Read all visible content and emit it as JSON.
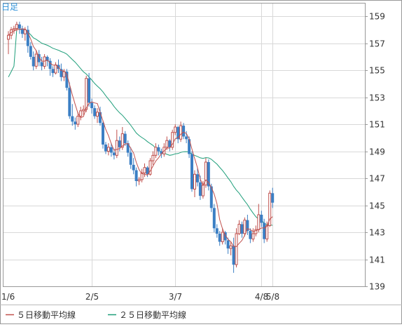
{
  "chart_data": {
    "type": "candlestick",
    "period_label": "日足",
    "ylim": [
      139,
      160
    ],
    "y_ticks": [
      159,
      157,
      155,
      153,
      151,
      149,
      147,
      145,
      143,
      141,
      139
    ],
    "x_ticks": [
      "1/6",
      "2/5",
      "3/7",
      "4/8",
      "5/8"
    ],
    "legend": [
      {
        "label": "５日移動平均線",
        "color": "#c0504d"
      },
      {
        "label": "２５日移動平均線",
        "color": "#1e9e7a"
      }
    ],
    "colors": {
      "up": "#c0504d",
      "down": "#3b7fc4",
      "grid": "#d8d8d8",
      "frame": "#999999"
    },
    "candles": [
      [
        157.3,
        157.9,
        156.2,
        157.6
      ],
      [
        157.6,
        158.2,
        157.3,
        158.0
      ],
      [
        158.0,
        158.3,
        157.7,
        158.1
      ],
      [
        158.1,
        158.6,
        157.9,
        158.4
      ],
      [
        158.4,
        158.6,
        157.7,
        158.1
      ],
      [
        158.1,
        158.3,
        157.4,
        157.7
      ],
      [
        157.7,
        158.2,
        157.2,
        158.0
      ],
      [
        158.0,
        158.3,
        156.3,
        156.8
      ],
      [
        156.8,
        157.1,
        155.8,
        156.0
      ],
      [
        156.0,
        156.4,
        155.0,
        155.3
      ],
      [
        155.3,
        156.5,
        155.1,
        156.2
      ],
      [
        156.2,
        156.5,
        155.3,
        155.6
      ],
      [
        155.6,
        156.0,
        155.0,
        155.3
      ],
      [
        155.3,
        156.2,
        155.1,
        156.0
      ],
      [
        156.0,
        156.1,
        155.3,
        155.7
      ],
      [
        155.7,
        155.9,
        154.6,
        155.1
      ],
      [
        155.1,
        155.3,
        154.5,
        154.8
      ],
      [
        154.8,
        155.6,
        154.7,
        155.4
      ],
      [
        155.4,
        155.8,
        154.8,
        155.1
      ],
      [
        155.1,
        155.5,
        154.2,
        154.5
      ],
      [
        154.5,
        155.1,
        154.2,
        154.9
      ],
      [
        154.9,
        155.1,
        153.5,
        153.7
      ],
      [
        153.7,
        154.1,
        151.4,
        151.6
      ],
      [
        151.6,
        152.5,
        150.9,
        151.2
      ],
      [
        151.2,
        151.5,
        150.6,
        151.0
      ],
      [
        151.0,
        151.9,
        150.8,
        151.6
      ],
      [
        151.6,
        152.3,
        151.3,
        152.0
      ],
      [
        152.0,
        152.4,
        151.7,
        152.1
      ],
      [
        152.1,
        154.6,
        151.9,
        154.4
      ],
      [
        154.4,
        154.8,
        152.3,
        152.6
      ],
      [
        152.6,
        152.9,
        151.8,
        152.2
      ],
      [
        152.2,
        152.4,
        151.4,
        151.6
      ],
      [
        151.6,
        152.2,
        151.1,
        151.9
      ],
      [
        151.9,
        152.3,
        150.9,
        151.1
      ],
      [
        151.1,
        151.3,
        149.2,
        149.5
      ],
      [
        149.5,
        149.7,
        148.8,
        149.0
      ],
      [
        149.0,
        149.6,
        148.7,
        149.3
      ],
      [
        149.3,
        149.6,
        148.6,
        148.9
      ],
      [
        148.9,
        149.2,
        148.4,
        148.7
      ],
      [
        148.7,
        150.6,
        148.5,
        149.8
      ],
      [
        149.8,
        150.1,
        149.0,
        149.3
      ],
      [
        149.3,
        150.8,
        149.1,
        150.3
      ],
      [
        150.3,
        150.5,
        149.4,
        149.6
      ],
      [
        149.6,
        149.8,
        148.6,
        148.9
      ],
      [
        148.9,
        149.3,
        147.7,
        148.0
      ],
      [
        148.0,
        148.5,
        147.3,
        147.6
      ],
      [
        147.6,
        147.8,
        146.4,
        146.8
      ],
      [
        146.8,
        147.1,
        146.5,
        146.9
      ],
      [
        146.9,
        147.7,
        146.7,
        147.4
      ],
      [
        147.4,
        148.1,
        147.1,
        147.8
      ],
      [
        147.8,
        147.9,
        147.1,
        147.3
      ],
      [
        147.3,
        148.5,
        147.2,
        148.3
      ],
      [
        148.3,
        149.0,
        148.0,
        148.7
      ],
      [
        148.7,
        149.6,
        148.5,
        149.3
      ],
      [
        149.3,
        149.5,
        148.7,
        149.0
      ],
      [
        149.0,
        149.2,
        148.5,
        148.8
      ],
      [
        148.8,
        149.6,
        148.6,
        149.3
      ],
      [
        149.3,
        150.1,
        149.1,
        149.8
      ],
      [
        149.8,
        149.9,
        149.0,
        149.3
      ],
      [
        149.3,
        150.6,
        149.1,
        150.4
      ],
      [
        150.4,
        151.0,
        150.2,
        150.8
      ],
      [
        150.8,
        150.9,
        149.6,
        149.9
      ],
      [
        149.9,
        151.2,
        149.7,
        150.9
      ],
      [
        150.9,
        151.1,
        149.9,
        150.1
      ],
      [
        150.1,
        150.5,
        149.6,
        149.9
      ],
      [
        149.9,
        150.1,
        148.5,
        148.8
      ],
      [
        148.8,
        149.0,
        146.0,
        146.2
      ],
      [
        146.2,
        147.6,
        145.6,
        147.3
      ],
      [
        147.3,
        147.8,
        146.4,
        146.7
      ],
      [
        146.7,
        147.2,
        145.4,
        145.7
      ],
      [
        145.7,
        146.8,
        145.5,
        146.5
      ],
      [
        146.5,
        148.5,
        146.3,
        148.2
      ],
      [
        148.2,
        148.4,
        146.1,
        146.4
      ],
      [
        146.4,
        146.6,
        144.5,
        144.8
      ],
      [
        144.8,
        145.1,
        143.0,
        143.3
      ],
      [
        143.3,
        143.6,
        142.6,
        142.9
      ],
      [
        142.9,
        143.1,
        142.0,
        142.3
      ],
      [
        142.3,
        143.3,
        142.1,
        143.0
      ],
      [
        143.0,
        143.1,
        142.1,
        142.4
      ],
      [
        142.4,
        142.6,
        141.4,
        141.8
      ],
      [
        141.8,
        142.3,
        141.3,
        142.0
      ],
      [
        142.0,
        142.6,
        140.0,
        140.6
      ],
      [
        140.6,
        143.3,
        140.4,
        142.9
      ],
      [
        142.9,
        143.9,
        142.8,
        143.6
      ],
      [
        143.6,
        143.8,
        142.6,
        142.9
      ],
      [
        142.9,
        144.1,
        142.7,
        143.9
      ],
      [
        143.9,
        144.3,
        142.8,
        143.1
      ],
      [
        143.1,
        143.3,
        142.2,
        142.5
      ],
      [
        142.5,
        143.3,
        142.3,
        142.9
      ],
      [
        142.9,
        143.5,
        142.7,
        143.2
      ],
      [
        143.2,
        145.1,
        143.0,
        144.3
      ],
      [
        144.3,
        144.6,
        143.4,
        143.7
      ],
      [
        143.7,
        144.0,
        142.2,
        142.5
      ],
      [
        142.5,
        143.8,
        142.3,
        143.5
      ],
      [
        143.5,
        146.1,
        143.4,
        145.9
      ],
      [
        145.9,
        146.3,
        144.8,
        145.2
      ]
    ]
  }
}
